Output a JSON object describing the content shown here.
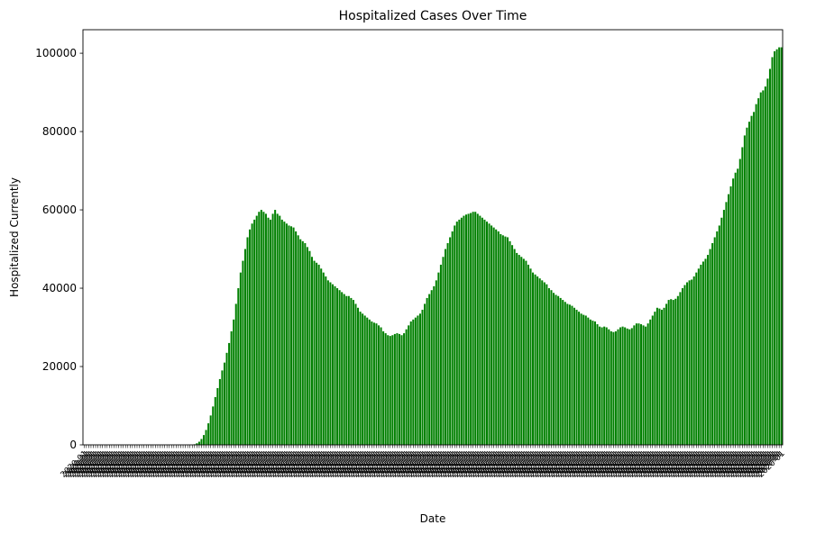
{
  "chart_data": {
    "type": "bar",
    "title": "Hospitalized Cases Over Time",
    "xlabel": "Date",
    "ylabel": "Hospitalized Currently",
    "ylim": [
      0,
      106000
    ],
    "yticks": [
      0,
      20000,
      40000,
      60000,
      80000,
      100000
    ],
    "bar_color": "#008000",
    "grid": false,
    "legend": "none",
    "x_tick_labels_note": "dense overlapping rotated date labels, illegible",
    "values": [
      0,
      0,
      0,
      0,
      0,
      0,
      0,
      0,
      0,
      0,
      0,
      0,
      0,
      0,
      0,
      0,
      0,
      0,
      0,
      0,
      0,
      0,
      0,
      0,
      0,
      0,
      0,
      0,
      0,
      0,
      0,
      0,
      0,
      0,
      0,
      0,
      0,
      0,
      0,
      0,
      0,
      0,
      0,
      0,
      0,
      0,
      0,
      0,
      150,
      400,
      800,
      1500,
      2500,
      3800,
      5500,
      7500,
      9800,
      12200,
      14500,
      16800,
      19000,
      21000,
      23500,
      26000,
      29000,
      32000,
      36000,
      40000,
      44000,
      47000,
      50000,
      53000,
      55000,
      56500,
      57500,
      58500,
      59500,
      60000,
      59500,
      59000,
      58000,
      57500,
      59000,
      60000,
      59000,
      58500,
      57500,
      57000,
      56500,
      56000,
      55800,
      55500,
      54500,
      53500,
      52500,
      52000,
      51500,
      50500,
      49500,
      48000,
      47000,
      46500,
      46000,
      45000,
      44000,
      43000,
      42000,
      41500,
      41000,
      40500,
      40000,
      39500,
      39000,
      38500,
      38000,
      38000,
      37500,
      37000,
      36000,
      35000,
      34000,
      33500,
      33000,
      32500,
      32000,
      31500,
      31200,
      31000,
      30500,
      30000,
      29000,
      28500,
      28000,
      27800,
      28000,
      28300,
      28500,
      28300,
      28000,
      28500,
      29500,
      30500,
      31500,
      32000,
      32500,
      33000,
      33500,
      34500,
      36000,
      37500,
      38500,
      39500,
      40500,
      42000,
      44000,
      46000,
      48000,
      50000,
      51500,
      53000,
      54500,
      56000,
      57000,
      57500,
      58000,
      58500,
      58800,
      59000,
      59200,
      59500,
      59500,
      59000,
      58500,
      58000,
      57500,
      57000,
      56500,
      56000,
      55500,
      55000,
      54500,
      53800,
      53500,
      53200,
      53000,
      52000,
      51000,
      50000,
      49000,
      48500,
      48000,
      47500,
      47000,
      46000,
      45000,
      44000,
      43500,
      43000,
      42500,
      42000,
      41500,
      41000,
      40000,
      39500,
      38800,
      38300,
      38000,
      37500,
      37000,
      36500,
      36000,
      35800,
      35500,
      35000,
      34500,
      34000,
      33500,
      33200,
      33000,
      32500,
      32000,
      31700,
      31500,
      30800,
      30200,
      30000,
      30200,
      30000,
      29500,
      29000,
      28800,
      29000,
      29500,
      30000,
      30200,
      30000,
      29700,
      29500,
      29800,
      30500,
      31000,
      31000,
      30800,
      30500,
      30200,
      31000,
      32000,
      33000,
      34000,
      35000,
      34800,
      34500,
      35000,
      36000,
      37000,
      37200,
      37000,
      37300,
      38000,
      39000,
      40000,
      40800,
      41500,
      42000,
      42200,
      43000,
      44000,
      45000,
      46000,
      46800,
      47500,
      48500,
      50000,
      51500,
      53000,
      54500,
      56000,
      58000,
      60000,
      62000,
      64000,
      66000,
      68000,
      69500,
      70500,
      73000,
      76000,
      79000,
      81000,
      82500,
      84000,
      85000,
      87000,
      88500,
      90000,
      90500,
      91500,
      93500,
      96000,
      99000,
      100500,
      101000,
      101500,
      101500
    ]
  }
}
